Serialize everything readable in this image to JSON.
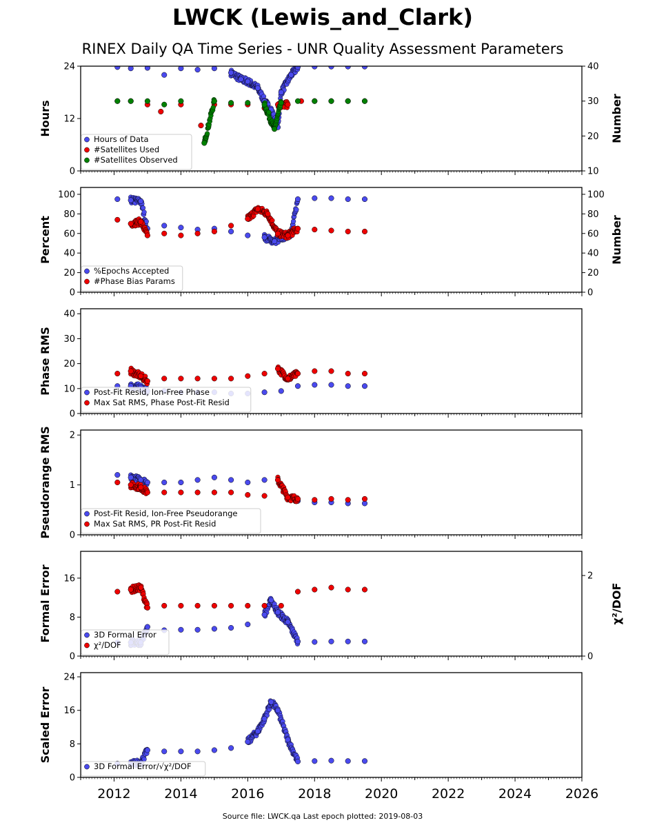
{
  "title": "LWCK (Lewis_and_Clark)",
  "subtitle": "RINEX Daily QA Time Series - UNR Quality Assessment Parameters",
  "footer": "Source file: LWCK.qa Last epoch plotted: 2019-08-03",
  "colors": {
    "blue": "#4a4aee",
    "red": "#ee0000",
    "green": "#008000",
    "edge": "#000000"
  },
  "chart_data": [
    {
      "type": "scatter",
      "ylabel": "Hours",
      "ylabel_right": "Number",
      "xlim": [
        2011,
        2026
      ],
      "ylim": [
        0,
        24
      ],
      "ylim_right": [
        10,
        40
      ],
      "yticks": [
        0,
        12,
        24
      ],
      "yticks_right": [
        10,
        20,
        30,
        40
      ],
      "legend_position": "lower-left",
      "series": [
        {
          "name": "Hours of Data",
          "color": "blue",
          "axis": "left",
          "points": [
            [
              2012.1,
              23.8
            ],
            [
              2012.5,
              23.5
            ],
            [
              2013.0,
              23.6
            ],
            [
              2013.5,
              22.0
            ],
            [
              2014.0,
              23.5
            ],
            [
              2014.5,
              23.2
            ],
            [
              2015.0,
              23.5
            ],
            [
              2015.5,
              22.5
            ],
            [
              2015.8,
              21.0
            ],
            [
              2016.0,
              20.5
            ],
            [
              2016.3,
              19.0
            ],
            [
              2016.5,
              16.0
            ],
            [
              2016.7,
              14.0
            ],
            [
              2016.9,
              10.0
            ],
            [
              2017.0,
              18.0
            ],
            [
              2017.3,
              22.0
            ],
            [
              2017.5,
              23.8
            ],
            [
              2018.0,
              23.9
            ],
            [
              2018.5,
              23.9
            ],
            [
              2019.0,
              23.9
            ],
            [
              2019.5,
              23.9
            ]
          ]
        },
        {
          "name": "#Satellites Used",
          "color": "red",
          "axis": "right",
          "points": [
            [
              2012.1,
              30
            ],
            [
              2012.5,
              30
            ],
            [
              2013.0,
              29
            ],
            [
              2013.4,
              27
            ],
            [
              2014.0,
              29
            ],
            [
              2014.6,
              23
            ],
            [
              2015.0,
              29
            ],
            [
              2015.5,
              29
            ],
            [
              2016.0,
              29
            ],
            [
              2016.5,
              28
            ],
            [
              2016.9,
              29
            ],
            [
              2017.2,
              29
            ],
            [
              2017.6,
              30
            ],
            [
              2018.0,
              30
            ],
            [
              2018.5,
              30
            ],
            [
              2019.0,
              30
            ],
            [
              2019.5,
              30
            ]
          ]
        },
        {
          "name": "#Satellites Observed",
          "color": "green",
          "axis": "right",
          "points": [
            [
              2012.1,
              30
            ],
            [
              2012.5,
              30
            ],
            [
              2013.0,
              30
            ],
            [
              2013.5,
              29
            ],
            [
              2014.0,
              30
            ],
            [
              2014.7,
              18
            ],
            [
              2015.0,
              30
            ],
            [
              2015.5,
              29.5
            ],
            [
              2016.0,
              29.5
            ],
            [
              2016.5,
              29
            ],
            [
              2016.8,
              22
            ],
            [
              2017.0,
              29.5
            ],
            [
              2017.5,
              30
            ],
            [
              2018.0,
              30
            ],
            [
              2018.5,
              30
            ],
            [
              2019.0,
              30
            ],
            [
              2019.5,
              30
            ]
          ]
        }
      ]
    },
    {
      "type": "scatter",
      "ylabel": "Percent",
      "ylabel_right": "Number",
      "xlim": [
        2011,
        2026
      ],
      "ylim": [
        0,
        107
      ],
      "ylim_right": [
        0,
        107
      ],
      "yticks": [
        0,
        20,
        40,
        60,
        80,
        100
      ],
      "yticks_right": [
        0,
        20,
        40,
        60,
        80,
        100
      ],
      "legend_position": "lower-left",
      "series": [
        {
          "name": "%Epochs Accepted",
          "color": "blue",
          "axis": "left",
          "points": [
            [
              2012.1,
              95
            ],
            [
              2012.5,
              94
            ],
            [
              2012.8,
              93
            ],
            [
              2013.0,
              65
            ],
            [
              2013.5,
              68
            ],
            [
              2014.0,
              66
            ],
            [
              2014.5,
              64
            ],
            [
              2015.0,
              65
            ],
            [
              2015.5,
              62
            ],
            [
              2016.0,
              58
            ],
            [
              2016.5,
              56
            ],
            [
              2016.8,
              52
            ],
            [
              2017.0,
              55
            ],
            [
              2017.3,
              60
            ],
            [
              2017.5,
              95
            ],
            [
              2018.0,
              96
            ],
            [
              2018.5,
              96
            ],
            [
              2019.0,
              95
            ],
            [
              2019.5,
              95
            ]
          ]
        },
        {
          "name": "#Phase Bias Params",
          "color": "red",
          "axis": "right",
          "points": [
            [
              2012.1,
              74
            ],
            [
              2012.5,
              70
            ],
            [
              2012.8,
              72
            ],
            [
              2013.0,
              58
            ],
            [
              2013.5,
              60
            ],
            [
              2014.0,
              58
            ],
            [
              2014.5,
              60
            ],
            [
              2015.0,
              62
            ],
            [
              2015.5,
              68
            ],
            [
              2016.0,
              75
            ],
            [
              2016.3,
              85
            ],
            [
              2016.6,
              80
            ],
            [
              2016.9,
              60
            ],
            [
              2017.2,
              58
            ],
            [
              2017.5,
              65
            ],
            [
              2018.0,
              64
            ],
            [
              2018.5,
              63
            ],
            [
              2019.0,
              62
            ],
            [
              2019.5,
              62
            ]
          ]
        }
      ]
    },
    {
      "type": "scatter",
      "ylabel": "Phase RMS",
      "xlim": [
        2011,
        2026
      ],
      "ylim": [
        0,
        42
      ],
      "yticks": [
        0,
        10,
        20,
        30,
        40
      ],
      "legend_position": "lower-left",
      "series": [
        {
          "name": "Post-Fit Resid, Ion-Free Phase",
          "color": "blue",
          "axis": "left",
          "points": [
            [
              2012.1,
              11
            ],
            [
              2012.5,
              11
            ],
            [
              2012.8,
              10.5
            ],
            [
              2013.0,
              9
            ],
            [
              2013.5,
              9
            ],
            [
              2014.0,
              8.5
            ],
            [
              2014.5,
              8.5
            ],
            [
              2015.0,
              8.5
            ],
            [
              2015.5,
              8
            ],
            [
              2016.0,
              8
            ],
            [
              2016.5,
              8.5
            ],
            [
              2017.0,
              9
            ],
            [
              2017.5,
              11
            ],
            [
              2018.0,
              11.5
            ],
            [
              2018.5,
              11.5
            ],
            [
              2019.0,
              11
            ],
            [
              2019.5,
              11
            ]
          ]
        },
        {
          "name": "Max Sat RMS, Phase Post-Fit Resid",
          "color": "red",
          "axis": "left",
          "points": [
            [
              2012.1,
              16
            ],
            [
              2012.5,
              17
            ],
            [
              2012.8,
              15
            ],
            [
              2013.0,
              13
            ],
            [
              2013.5,
              14
            ],
            [
              2014.0,
              14
            ],
            [
              2014.5,
              14
            ],
            [
              2015.0,
              14
            ],
            [
              2015.5,
              14
            ],
            [
              2016.0,
              15
            ],
            [
              2016.5,
              16
            ],
            [
              2016.9,
              18
            ],
            [
              2017.2,
              14
            ],
            [
              2017.5,
              16
            ],
            [
              2018.0,
              17
            ],
            [
              2018.5,
              17
            ],
            [
              2019.0,
              16
            ],
            [
              2019.5,
              16
            ]
          ]
        }
      ]
    },
    {
      "type": "scatter",
      "ylabel": "Pseudorange RMS",
      "xlim": [
        2011,
        2026
      ],
      "ylim": [
        0,
        2.1
      ],
      "yticks": [
        0,
        1,
        2
      ],
      "legend_position": "lower-left",
      "series": [
        {
          "name": "Post-Fit Resid, Ion-Free Pseudorange",
          "color": "blue",
          "axis": "left",
          "points": [
            [
              2012.1,
              1.2
            ],
            [
              2012.5,
              1.15
            ],
            [
              2012.8,
              1.1
            ],
            [
              2013.0,
              1.05
            ],
            [
              2013.5,
              1.05
            ],
            [
              2014.0,
              1.05
            ],
            [
              2014.5,
              1.1
            ],
            [
              2015.0,
              1.15
            ],
            [
              2015.5,
              1.1
            ],
            [
              2016.0,
              1.05
            ],
            [
              2016.5,
              1.1
            ],
            [
              2017.0,
              1.0
            ],
            [
              2017.5,
              0.68
            ],
            [
              2018.0,
              0.65
            ],
            [
              2018.5,
              0.65
            ],
            [
              2019.0,
              0.63
            ],
            [
              2019.5,
              0.63
            ]
          ]
        },
        {
          "name": "Max Sat RMS, PR Post-Fit Resid",
          "color": "red",
          "axis": "left",
          "points": [
            [
              2012.1,
              1.05
            ],
            [
              2012.5,
              1.0
            ],
            [
              2012.8,
              0.95
            ],
            [
              2013.0,
              0.85
            ],
            [
              2013.5,
              0.85
            ],
            [
              2014.0,
              0.85
            ],
            [
              2014.5,
              0.85
            ],
            [
              2015.0,
              0.85
            ],
            [
              2015.5,
              0.85
            ],
            [
              2016.0,
              0.8
            ],
            [
              2016.5,
              0.78
            ],
            [
              2016.9,
              1.1
            ],
            [
              2017.2,
              0.75
            ],
            [
              2017.5,
              0.72
            ],
            [
              2018.0,
              0.7
            ],
            [
              2018.5,
              0.72
            ],
            [
              2019.0,
              0.7
            ],
            [
              2019.5,
              0.72
            ]
          ]
        }
      ]
    },
    {
      "type": "scatter",
      "ylabel": "Formal Error",
      "ylabel_right": "χ²/DOF",
      "xlim": [
        2011,
        2026
      ],
      "ylim": [
        0,
        21.5
      ],
      "ylim_right": [
        0,
        2.6
      ],
      "yticks": [
        0,
        8,
        16
      ],
      "yticks_right": [
        0,
        2
      ],
      "legend_position": "lower-left",
      "series": [
        {
          "name": "3D Formal Error",
          "color": "blue",
          "axis": "left",
          "points": [
            [
              2012.1,
              2.8
            ],
            [
              2012.5,
              2.8
            ],
            [
              2012.8,
              2.8
            ],
            [
              2013.0,
              6.0
            ],
            [
              2013.5,
              5.3
            ],
            [
              2014.0,
              5.4
            ],
            [
              2014.5,
              5.4
            ],
            [
              2015.0,
              5.6
            ],
            [
              2015.5,
              5.8
            ],
            [
              2016.0,
              6.5
            ],
            [
              2016.5,
              8.5
            ],
            [
              2016.7,
              11.5
            ],
            [
              2016.9,
              9.0
            ],
            [
              2017.2,
              7.0
            ],
            [
              2017.5,
              3.0
            ],
            [
              2018.0,
              2.9
            ],
            [
              2018.5,
              3.0
            ],
            [
              2019.0,
              3.0
            ],
            [
              2019.5,
              3.0
            ]
          ]
        },
        {
          "name": "χ²/DOF",
          "color": "red",
          "axis": "right",
          "points": [
            [
              2012.1,
              1.6
            ],
            [
              2012.5,
              1.65
            ],
            [
              2012.8,
              1.7
            ],
            [
              2013.0,
              1.2
            ],
            [
              2013.5,
              1.25
            ],
            [
              2014.0,
              1.25
            ],
            [
              2014.5,
              1.25
            ],
            [
              2015.0,
              1.25
            ],
            [
              2015.5,
              1.25
            ],
            [
              2016.0,
              1.25
            ],
            [
              2016.5,
              1.25
            ],
            [
              2017.0,
              1.25
            ],
            [
              2017.5,
              1.6
            ],
            [
              2018.0,
              1.65
            ],
            [
              2018.5,
              1.7
            ],
            [
              2019.0,
              1.65
            ],
            [
              2019.5,
              1.65
            ]
          ]
        }
      ]
    },
    {
      "type": "scatter",
      "ylabel": "Scaled Error",
      "xlim": [
        2011,
        2026
      ],
      "ylim": [
        0,
        25
      ],
      "yticks": [
        0,
        8,
        16,
        24
      ],
      "xticks": [
        2012,
        2014,
        2016,
        2018,
        2020,
        2022,
        2024,
        2026
      ],
      "legend_position": "lower-left",
      "series": [
        {
          "name": "3D Formal Error/√χ²/DOF",
          "color": "blue",
          "axis": "left",
          "points": [
            [
              2012.1,
              3.3
            ],
            [
              2012.5,
              3.3
            ],
            [
              2012.8,
              3.5
            ],
            [
              2013.0,
              6.5
            ],
            [
              2013.5,
              6.2
            ],
            [
              2014.0,
              6.2
            ],
            [
              2014.5,
              6.2
            ],
            [
              2015.0,
              6.5
            ],
            [
              2015.5,
              7.0
            ],
            [
              2016.0,
              8.5
            ],
            [
              2016.3,
              11.0
            ],
            [
              2016.5,
              14.0
            ],
            [
              2016.7,
              18.0
            ],
            [
              2016.9,
              16.0
            ],
            [
              2017.2,
              9.0
            ],
            [
              2017.5,
              3.8
            ],
            [
              2018.0,
              3.9
            ],
            [
              2018.5,
              4.0
            ],
            [
              2019.0,
              3.9
            ],
            [
              2019.5,
              3.9
            ]
          ]
        }
      ]
    }
  ]
}
